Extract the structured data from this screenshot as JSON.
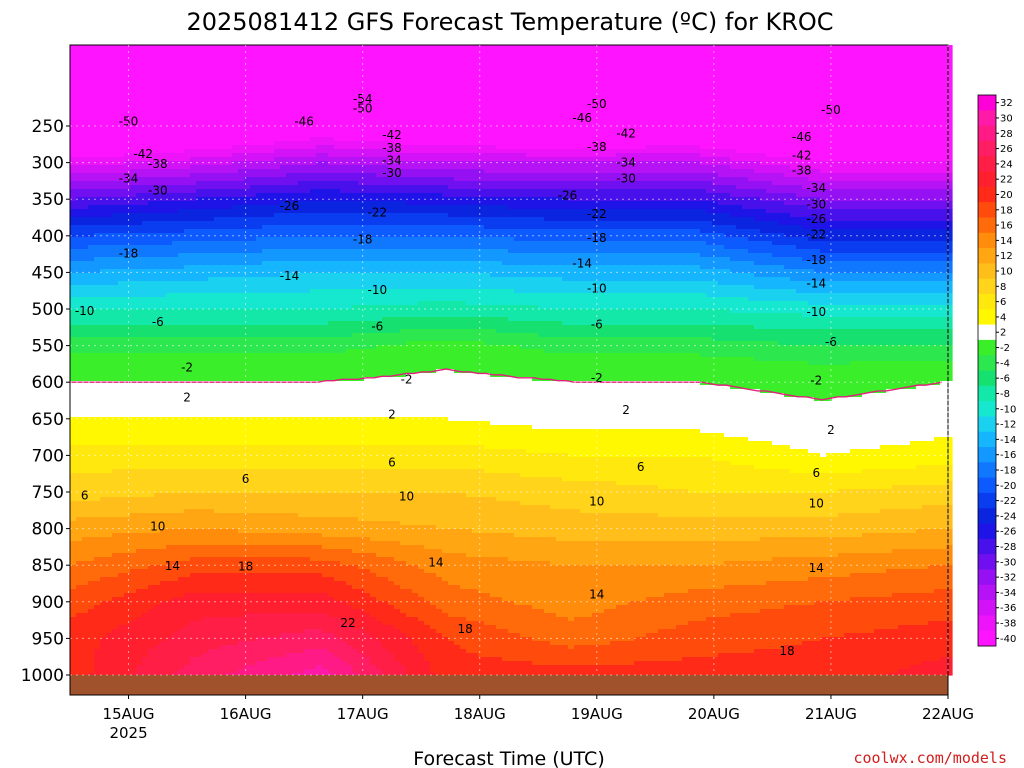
{
  "title": "2025081412 GFS Forecast Temperature (ºC) for KROC",
  "credit": "coolwx.com/models",
  "chart_data": {
    "type": "heatmap",
    "title": "2025081412 GFS Forecast Temperature (ºC) for KROC",
    "xlabel": "Forecast Time (UTC)",
    "ylabel": "",
    "x_ticks": [
      "15AUG",
      "16AUG",
      "17AUG",
      "18AUG",
      "19AUG",
      "20AUG",
      "21AUG",
      "22AUG"
    ],
    "x_tick_sublabel": "2025",
    "xlim": [
      "2025-08-14 12Z",
      "2025-08-22 00Z"
    ],
    "y_ticks": [
      250,
      300,
      350,
      400,
      450,
      500,
      550,
      600,
      650,
      700,
      750,
      800,
      850,
      900,
      950,
      1000
    ],
    "ylim": [
      1000,
      200
    ],
    "grid": true,
    "colorbar_ticks": [
      32,
      30,
      28,
      26,
      24,
      22,
      20,
      18,
      16,
      14,
      12,
      10,
      8,
      6,
      4,
      2,
      -2,
      -4,
      -6,
      -8,
      -10,
      -12,
      -14,
      -16,
      -18,
      -20,
      -22,
      -24,
      -26,
      -28,
      -30,
      -32,
      -34,
      -36,
      -38,
      -40
    ],
    "colorbar_colors": [
      "#ff00d8",
      "#ff1aa8",
      "#ff1a86",
      "#ff1d63",
      "#ff1f46",
      "#ff1f2e",
      "#ff2a18",
      "#ff4c0d",
      "#ff6a0a",
      "#ff8c0a",
      "#ffa612",
      "#ffbe1a",
      "#ffd41a",
      "#ffe80d",
      "#fff800",
      "#ffffff",
      "#3aee2a",
      "#2ce84e",
      "#16e070",
      "#14e8a8",
      "#16e8d0",
      "#1ad2f0",
      "#16b6ff",
      "#1298ff",
      "#1078ff",
      "#0d5aff",
      "#0a3cf0",
      "#0a24e0",
      "#1e14e8",
      "#4810ea",
      "#7010f0",
      "#9610f4",
      "#b612f6",
      "#d412f8",
      "#ee14fa",
      "#ff14ff"
    ],
    "series": [
      {
        "level_hpa": 1000,
        "temp_c": [
          20,
          26,
          30,
          20,
          20,
          20,
          20,
          22
        ]
      },
      {
        "level_hpa": 950,
        "temp_c": [
          20,
          24,
          26,
          19,
          16,
          18,
          19,
          20
        ]
      },
      {
        "level_hpa": 900,
        "temp_c": [
          18,
          22,
          22,
          16,
          14,
          16,
          17,
          18
        ]
      },
      {
        "level_hpa": 850,
        "temp_c": [
          15,
          18,
          18,
          14,
          13,
          13,
          14,
          15
        ]
      },
      {
        "level_hpa": 800,
        "temp_c": [
          12,
          13,
          12,
          11,
          10,
          10,
          10,
          11
        ]
      },
      {
        "level_hpa": 750,
        "temp_c": [
          8,
          9,
          9,
          9,
          8,
          7,
          7,
          8
        ]
      },
      {
        "level_hpa": 700,
        "temp_c": [
          6,
          6,
          6,
          6,
          5,
          5,
          3,
          4
        ]
      },
      {
        "level_hpa": 650,
        "temp_c": [
          3,
          3,
          3,
          3,
          2,
          2,
          1,
          2
        ]
      },
      {
        "level_hpa": 600,
        "temp_c": [
          0,
          0,
          0,
          1,
          0,
          0,
          -1,
          0
        ]
      },
      {
        "level_hpa": 550,
        "temp_c": [
          -4,
          -4,
          -4,
          -2,
          -4,
          -4,
          -5,
          -5
        ]
      },
      {
        "level_hpa": 500,
        "temp_c": [
          -9,
          -9,
          -9,
          -8,
          -9,
          -9,
          -10,
          -10
        ]
      },
      {
        "level_hpa": 450,
        "temp_c": [
          -15,
          -14,
          -13,
          -13,
          -14,
          -14,
          -17,
          -17
        ]
      },
      {
        "level_hpa": 400,
        "temp_c": [
          -21,
          -20,
          -19,
          -19,
          -20,
          -20,
          -24,
          -24
        ]
      },
      {
        "level_hpa": 350,
        "temp_c": [
          -29,
          -27,
          -25,
          -26,
          -27,
          -27,
          -31,
          -31
        ]
      },
      {
        "level_hpa": 300,
        "temp_c": [
          -38,
          -36,
          -33,
          -35,
          -35,
          -35,
          -39,
          -39
        ]
      },
      {
        "level_hpa": 250,
        "temp_c": [
          -47,
          -45,
          -42,
          -44,
          -45,
          -44,
          -47,
          -47
        ]
      },
      {
        "level_hpa": 200,
        "temp_c": [
          -55,
          -54,
          -53,
          -52,
          -53,
          -53,
          -53,
          -54
        ]
      }
    ],
    "contour_labels": [
      {
        "text": "-54",
        "x": "2025-08-17 00Z",
        "p": 213
      },
      {
        "text": "-50",
        "x": "2025-08-17 00Z",
        "p": 226
      },
      {
        "text": "-50",
        "x": "2025-08-19 00Z",
        "p": 220
      },
      {
        "text": "-50",
        "x": "2025-08-21 00Z",
        "p": 228
      },
      {
        "text": "-50",
        "x": "2025-08-15 00Z",
        "p": 244
      },
      {
        "text": "-46",
        "x": "2025-08-16 12Z",
        "p": 244
      },
      {
        "text": "-46",
        "x": "2025-08-18 21Z",
        "p": 239
      },
      {
        "text": "-46",
        "x": "2025-08-20 18Z",
        "p": 265
      },
      {
        "text": "-42",
        "x": "2025-08-17 06Z",
        "p": 262
      },
      {
        "text": "-42",
        "x": "2025-08-19 06Z",
        "p": 260
      },
      {
        "text": "-42",
        "x": "2025-08-15 03Z",
        "p": 288
      },
      {
        "text": "-42",
        "x": "2025-08-20 18Z",
        "p": 290
      },
      {
        "text": "-38",
        "x": "2025-08-17 06Z",
        "p": 280
      },
      {
        "text": "-38",
        "x": "2025-08-19 00Z",
        "p": 279
      },
      {
        "text": "-38",
        "x": "2025-08-15 06Z",
        "p": 302
      },
      {
        "text": "-38",
        "x": "2025-08-20 18Z",
        "p": 311
      },
      {
        "text": "-34",
        "x": "2025-08-17 06Z",
        "p": 297
      },
      {
        "text": "-34",
        "x": "2025-08-19 06Z",
        "p": 300
      },
      {
        "text": "-34",
        "x": "2025-08-15 00Z",
        "p": 322
      },
      {
        "text": "-34",
        "x": "2025-08-20 21Z",
        "p": 335
      },
      {
        "text": "-30",
        "x": "2025-08-17 06Z",
        "p": 314
      },
      {
        "text": "-30",
        "x": "2025-08-19 06Z",
        "p": 322
      },
      {
        "text": "-30",
        "x": "2025-08-15 06Z",
        "p": 338
      },
      {
        "text": "-30",
        "x": "2025-08-20 21Z",
        "p": 357
      },
      {
        "text": "-26",
        "x": "2025-08-16 09Z",
        "p": 359
      },
      {
        "text": "-26",
        "x": "2025-08-18 18Z",
        "p": 345
      },
      {
        "text": "-26",
        "x": "2025-08-20 21Z",
        "p": 377
      },
      {
        "text": "-22",
        "x": "2025-08-17 03Z",
        "p": 368
      },
      {
        "text": "-22",
        "x": "2025-08-19 00Z",
        "p": 370
      },
      {
        "text": "-22",
        "x": "2025-08-20 21Z",
        "p": 398
      },
      {
        "text": "-18",
        "x": "2025-08-15 00Z",
        "p": 424
      },
      {
        "text": "-18",
        "x": "2025-08-17 00Z",
        "p": 405
      },
      {
        "text": "-18",
        "x": "2025-08-19 00Z",
        "p": 403
      },
      {
        "text": "-18",
        "x": "2025-08-20 21Z",
        "p": 433
      },
      {
        "text": "-14",
        "x": "2025-08-16 09Z",
        "p": 455
      },
      {
        "text": "-14",
        "x": "2025-08-18 21Z",
        "p": 438
      },
      {
        "text": "-14",
        "x": "2025-08-20 21Z",
        "p": 465
      },
      {
        "text": "-10",
        "x": "2025-08-14 15Z",
        "p": 503
      },
      {
        "text": "-10",
        "x": "2025-08-17 03Z",
        "p": 474
      },
      {
        "text": "-10",
        "x": "2025-08-19 00Z",
        "p": 472
      },
      {
        "text": "-10",
        "x": "2025-08-20 21Z",
        "p": 504
      },
      {
        "text": "-6",
        "x": "2025-08-15 06Z",
        "p": 518
      },
      {
        "text": "-6",
        "x": "2025-08-17 03Z",
        "p": 524
      },
      {
        "text": "-6",
        "x": "2025-08-19 00Z",
        "p": 521
      },
      {
        "text": "-6",
        "x": "2025-08-21 00Z",
        "p": 545
      },
      {
        "text": "-2",
        "x": "2025-08-15 12Z",
        "p": 580
      },
      {
        "text": "-2",
        "x": "2025-08-17 09Z",
        "p": 596
      },
      {
        "text": "-2",
        "x": "2025-08-19 00Z",
        "p": 594
      },
      {
        "text": "-2",
        "x": "2025-08-20 21Z",
        "p": 598
      },
      {
        "text": "2",
        "x": "2025-08-15 12Z",
        "p": 621
      },
      {
        "text": "2",
        "x": "2025-08-17 06Z",
        "p": 644
      },
      {
        "text": "2",
        "x": "2025-08-19 06Z",
        "p": 638
      },
      {
        "text": "2",
        "x": "2025-08-21 00Z",
        "p": 665
      },
      {
        "text": "6",
        "x": "2025-08-14 15Z",
        "p": 755
      },
      {
        "text": "6",
        "x": "2025-08-16 00Z",
        "p": 732
      },
      {
        "text": "6",
        "x": "2025-08-17 06Z",
        "p": 710
      },
      {
        "text": "6",
        "x": "2025-08-19 09Z",
        "p": 716
      },
      {
        "text": "6",
        "x": "2025-08-20 21Z",
        "p": 724
      },
      {
        "text": "10",
        "x": "2025-08-15 06Z",
        "p": 797
      },
      {
        "text": "10",
        "x": "2025-08-17 09Z",
        "p": 756
      },
      {
        "text": "10",
        "x": "2025-08-19 00Z",
        "p": 763
      },
      {
        "text": "10",
        "x": "2025-08-20 21Z",
        "p": 766
      },
      {
        "text": "14",
        "x": "2025-08-15 09Z",
        "p": 851
      },
      {
        "text": "14",
        "x": "2025-08-17 15Z",
        "p": 846
      },
      {
        "text": "14",
        "x": "2025-08-19 00Z",
        "p": 890
      },
      {
        "text": "14",
        "x": "2025-08-20 21Z",
        "p": 854
      },
      {
        "text": "18",
        "x": "2025-08-16 00Z",
        "p": 852
      },
      {
        "text": "18",
        "x": "2025-08-17 21Z",
        "p": 937
      },
      {
        "text": "18",
        "x": "2025-08-20 15Z",
        "p": 967
      },
      {
        "text": "22",
        "x": "2025-08-16 21Z",
        "p": 929
      }
    ]
  }
}
